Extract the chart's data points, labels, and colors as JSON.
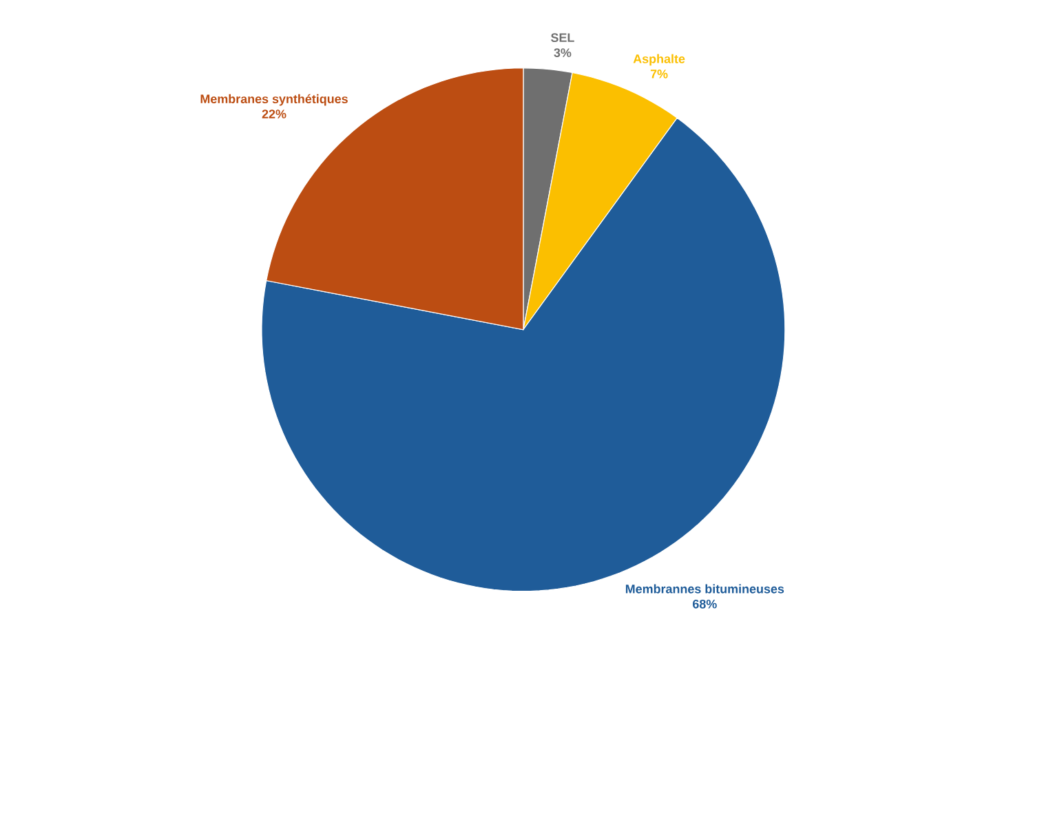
{
  "chart_data": {
    "type": "pie",
    "categories": [
      "SEL",
      "Asphalte",
      "Membrannes bitumineuses",
      "Membranes synthétiques"
    ],
    "values": [
      3,
      7,
      68,
      22
    ],
    "value_labels": [
      "3%",
      "7%",
      "68%",
      "22%"
    ],
    "colors": [
      "#6f6f6f",
      "#fbbf00",
      "#1f5c99",
      "#bc4d12"
    ]
  }
}
